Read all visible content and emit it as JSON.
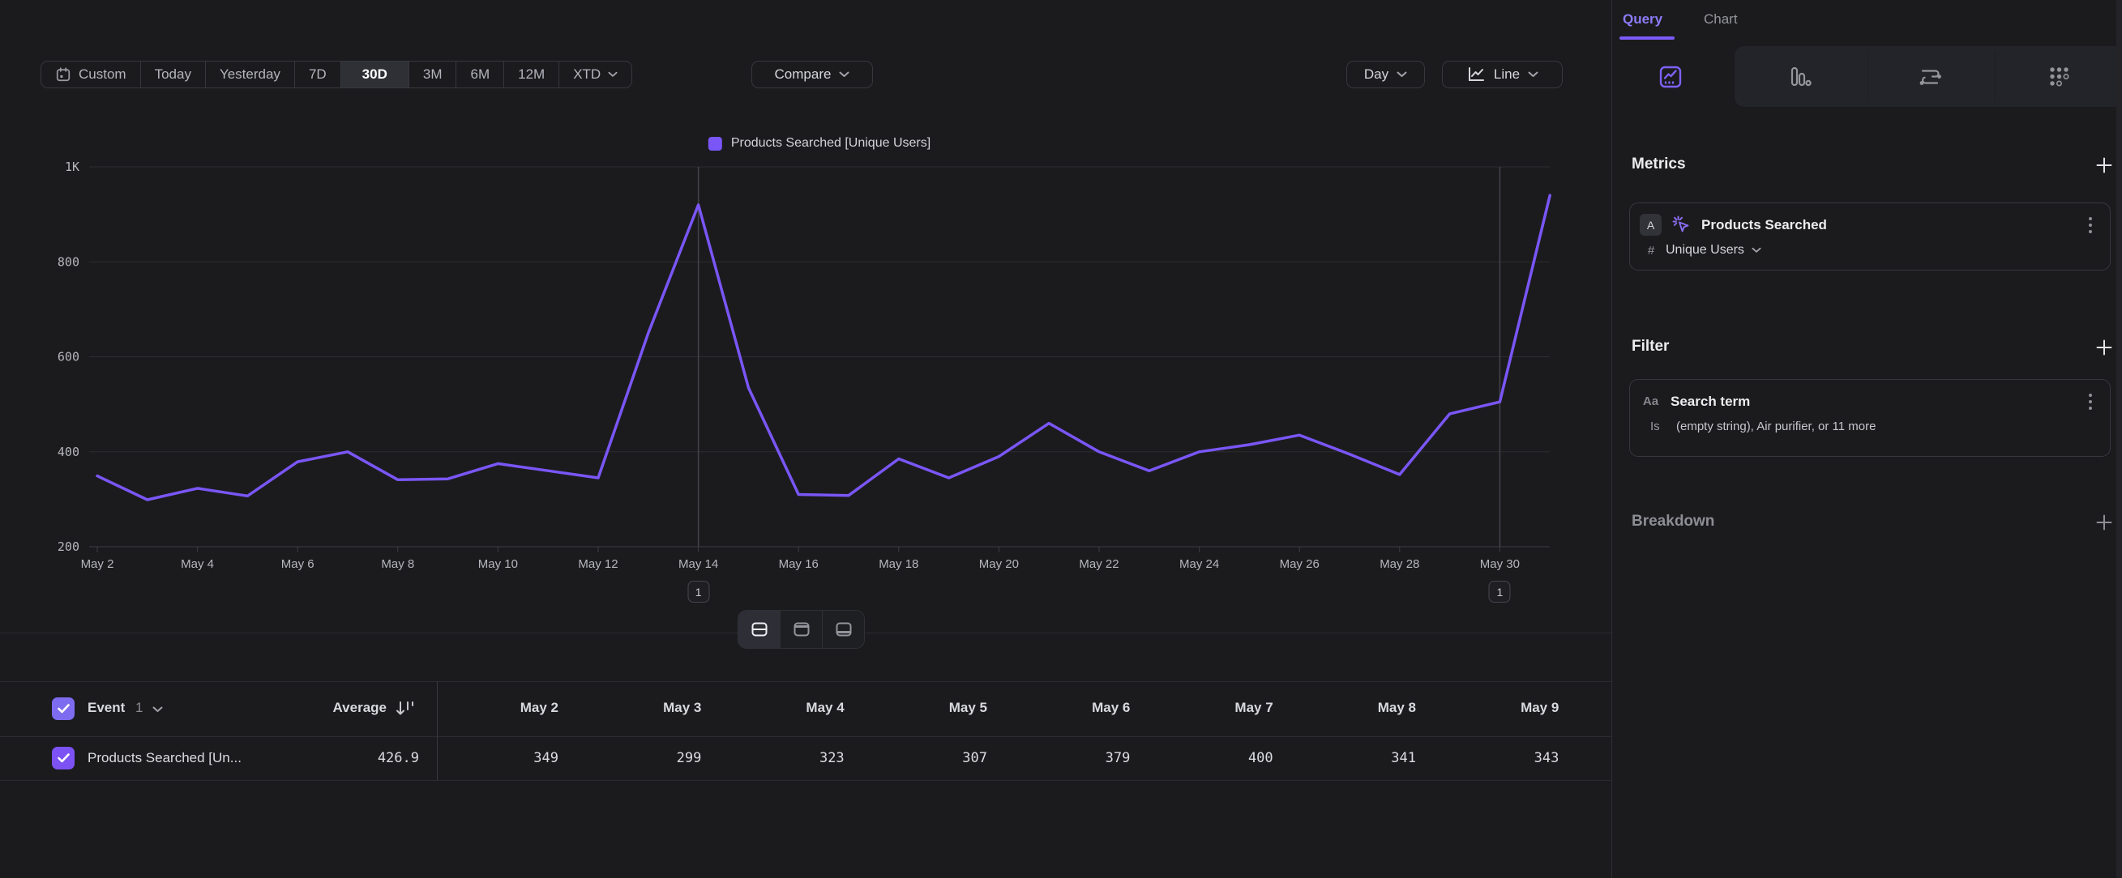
{
  "colors": {
    "accent": "#7a56f6",
    "accent_light": "#8b7cf7",
    "background": "#1b1b1e",
    "grid": "#2c2d31",
    "axis": "#3c3d42",
    "annotation_line": "#43444a",
    "checkbox_header": "#7e6cf0",
    "checkbox_row": "#7c52f4"
  },
  "toolbar": {
    "date_ranges": [
      "Custom",
      "Today",
      "Yesterday",
      "7D",
      "30D",
      "3M",
      "6M",
      "12M",
      "XTD"
    ],
    "selected_range": "30D",
    "compare_label": "Compare",
    "granularity_label": "Day",
    "chart_type_label": "Line"
  },
  "legend": {
    "label": "Products Searched [Unique Users]"
  },
  "chart_data": {
    "type": "line",
    "title": "Products Searched [Unique Users]",
    "x": [
      "May 2",
      "May 3",
      "May 4",
      "May 5",
      "May 6",
      "May 7",
      "May 8",
      "May 9",
      "May 10",
      "May 11",
      "May 12",
      "May 13",
      "May 14",
      "May 15",
      "May 16",
      "May 17",
      "May 18",
      "May 19",
      "May 20",
      "May 21",
      "May 22",
      "May 23",
      "May 24",
      "May 25",
      "May 26",
      "May 27",
      "May 28",
      "May 29",
      "May 30",
      "May 31"
    ],
    "values": [
      349,
      299,
      323,
      307,
      379,
      400,
      341,
      343,
      375,
      360,
      345,
      650,
      920,
      535,
      310,
      308,
      385,
      345,
      390,
      460,
      400,
      360,
      400,
      415,
      435,
      395,
      352,
      480,
      505,
      940
    ],
    "series": [
      {
        "name": "Products Searched [Unique Users]",
        "values": [
          349,
          299,
          323,
          307,
          379,
          400,
          341,
          343,
          375,
          360,
          345,
          650,
          920,
          535,
          310,
          308,
          385,
          345,
          390,
          460,
          400,
          360,
          400,
          415,
          435,
          395,
          352,
          480,
          505,
          940
        ]
      }
    ],
    "ylim": [
      200,
      1000
    ],
    "y_ticks": [
      {
        "label": "1K",
        "value": 1000
      },
      {
        "label": "800",
        "value": 800
      },
      {
        "label": "600",
        "value": 600
      },
      {
        "label": "400",
        "value": 400
      },
      {
        "label": "200",
        "value": 200
      }
    ],
    "x_tick_every": 2,
    "grid": true,
    "legend_position": "top",
    "annotations": [
      {
        "label": "1",
        "date": "May 14"
      },
      {
        "label": "1",
        "date": "May 30"
      }
    ]
  },
  "table": {
    "header": {
      "event_label": "Event",
      "event_count": "1",
      "average_label": "Average"
    },
    "columns": [
      "May 2",
      "May 3",
      "May 4",
      "May 5",
      "May 6",
      "May 7",
      "May 8",
      "May 9"
    ],
    "rows": [
      {
        "name": "Products Searched [Un...",
        "average": "426.9",
        "values": [
          "349",
          "299",
          "323",
          "307",
          "379",
          "400",
          "341",
          "343"
        ],
        "checked": true
      }
    ]
  },
  "panel": {
    "tabs": [
      {
        "label": "Query",
        "active": true
      },
      {
        "label": "Chart",
        "active": false
      }
    ],
    "report_tabs": [
      "insights",
      "funnels",
      "flows",
      "retention"
    ],
    "active_report_tab": "insights",
    "metrics": {
      "title": "Metrics",
      "items": [
        {
          "letter": "A",
          "name": "Products Searched",
          "agg_prefix": "#",
          "aggregation": "Unique Users"
        }
      ]
    },
    "filter": {
      "title": "Filter",
      "items": [
        {
          "type_icon": "Aa",
          "name": "Search term",
          "operator": "Is",
          "value": "(empty string), Air purifier, or 11 more"
        }
      ]
    },
    "breakdown": {
      "title": "Breakdown"
    }
  }
}
